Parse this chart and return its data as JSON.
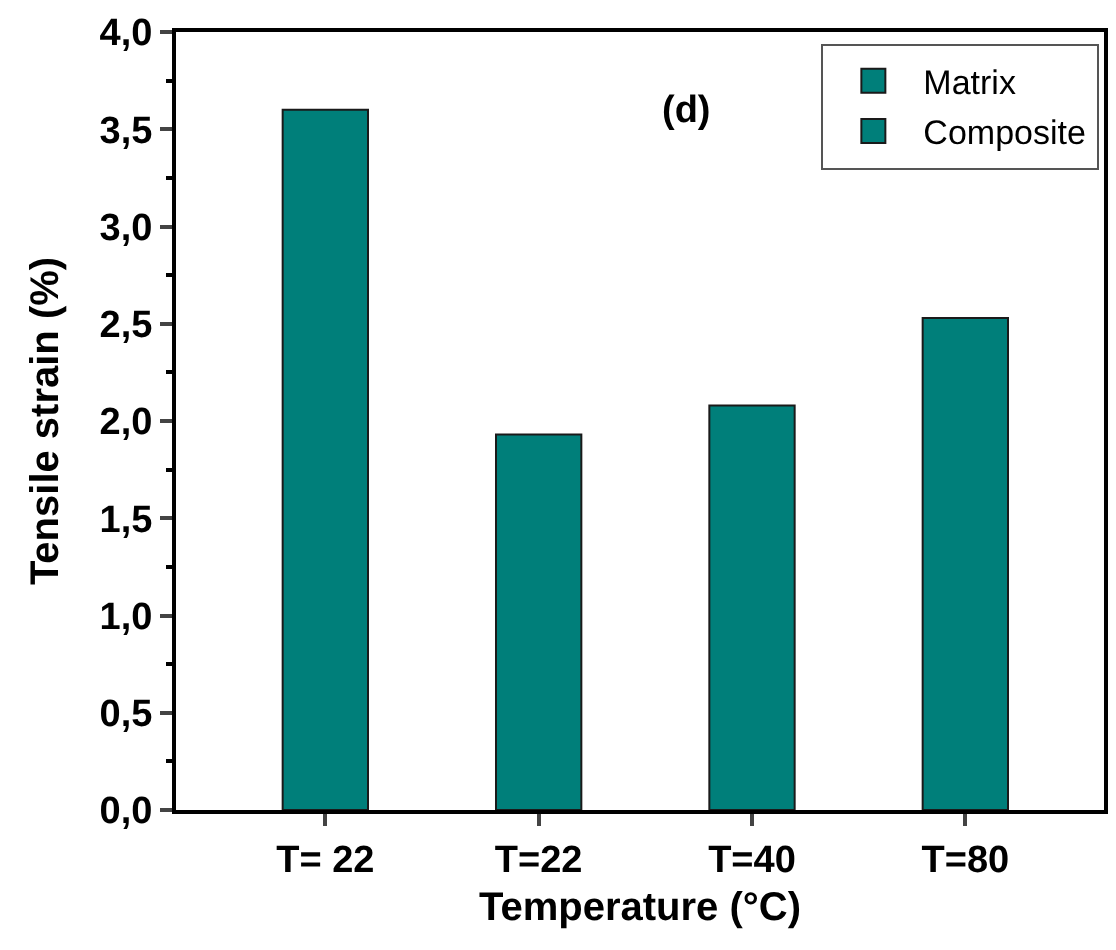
{
  "chart_data": {
    "type": "bar",
    "xlabel": "Temperature (°C)",
    "ylabel": "Tensile strain (%)",
    "categories": [
      "T= 22",
      "T=22",
      "T=40",
      "T=80"
    ],
    "series": [
      {
        "name": "Matrix",
        "color": "#007f7a",
        "values": [
          3.6,
          null,
          null,
          null
        ]
      },
      {
        "name": "Composite",
        "color": "#007f7a",
        "values": [
          null,
          1.93,
          2.08,
          2.53
        ]
      }
    ],
    "ylim": [
      0,
      4
    ],
    "yticks": [
      {
        "value": 0,
        "label": "0,0"
      },
      {
        "value": 0.5,
        "label": "0,5"
      },
      {
        "value": 1,
        "label": "1,0"
      },
      {
        "value": 1.5,
        "label": "1,5"
      },
      {
        "value": 2,
        "label": "2,0"
      },
      {
        "value": 2.5,
        "label": "2,5"
      },
      {
        "value": 3,
        "label": "3,0"
      },
      {
        "value": 3.5,
        "label": "3,5"
      },
      {
        "value": 4,
        "label": "4,0"
      }
    ],
    "annotations": [
      "(d)"
    ],
    "legend": "top right"
  }
}
